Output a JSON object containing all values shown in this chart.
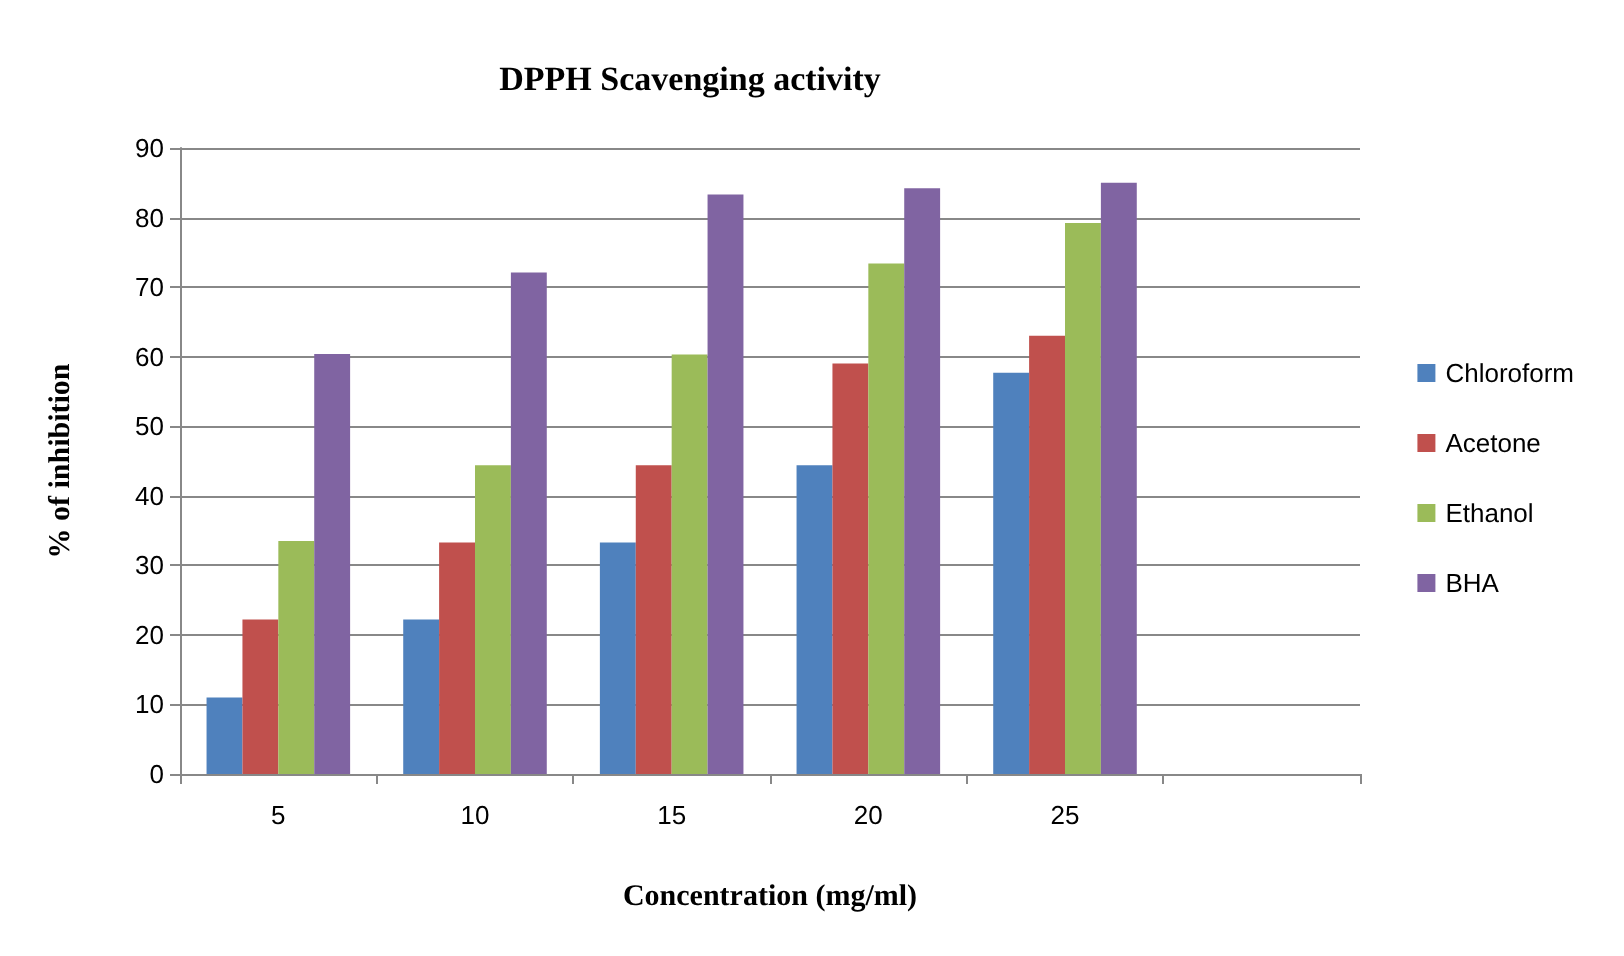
{
  "chart_data": {
    "type": "bar",
    "title": "DPPH Scavenging activity",
    "xlabel": "Concentration (mg/ml)",
    "ylabel": "% of inhibition",
    "categories": [
      "5",
      "10",
      "15",
      "20",
      "25",
      null
    ],
    "series": [
      {
        "name": "Chloroform",
        "color": "#4f81bd",
        "values": [
          11,
          22.2,
          33.3,
          44.4,
          57.7,
          null
        ]
      },
      {
        "name": "Acetone",
        "color": "#c0504d",
        "values": [
          22.2,
          33.3,
          44.4,
          59,
          63,
          null
        ]
      },
      {
        "name": "Ethanol",
        "color": "#9bbb59",
        "values": [
          33.5,
          44.4,
          60.3,
          73.4,
          79.2,
          null
        ]
      },
      {
        "name": "BHA",
        "color": "#8064a2",
        "values": [
          60.4,
          72.1,
          83.3,
          84.2,
          85,
          null
        ]
      }
    ],
    "ylim": [
      0,
      90
    ],
    "yticks": [
      0,
      10,
      20,
      30,
      40,
      50,
      60,
      70,
      80,
      90
    ],
    "grid": "y",
    "legend": "right"
  }
}
